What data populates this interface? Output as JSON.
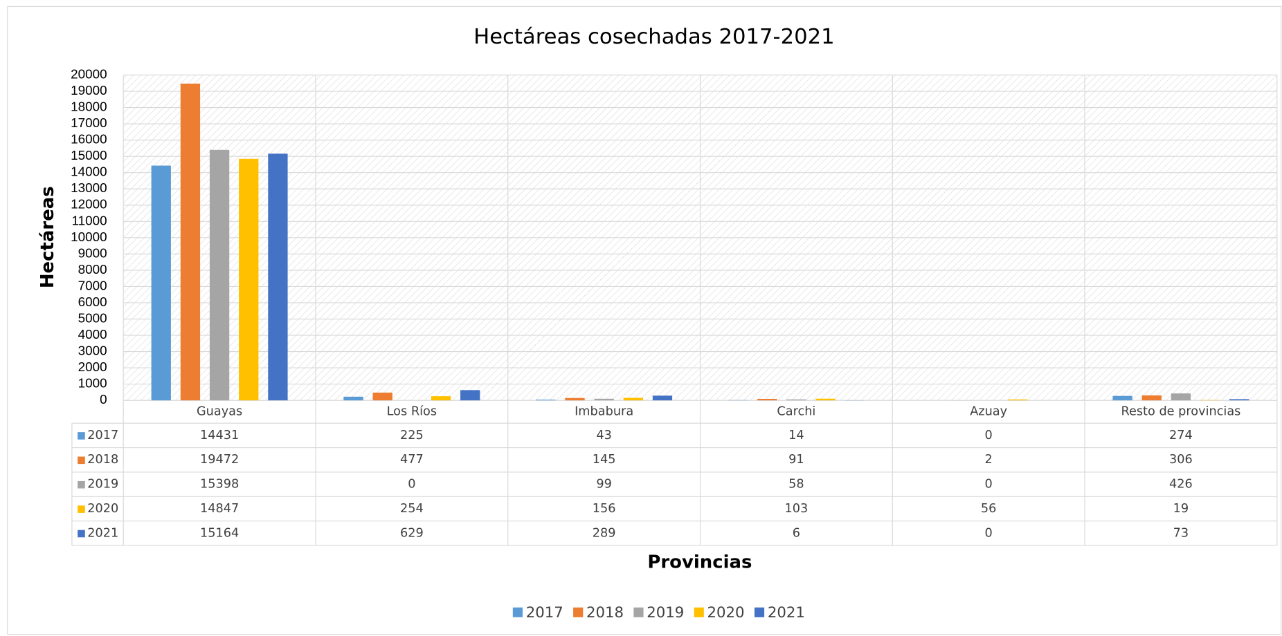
{
  "chart_data": {
    "type": "bar",
    "title": "Hectáreas cosechadas 2017-2021",
    "x_label": "Provincias",
    "y_label": "Hectáreas",
    "categories": [
      "Guayas",
      "Los Ríos",
      "Imbabura",
      "Carchi",
      "Azuay",
      "Resto de provincias"
    ],
    "series": [
      {
        "name": "2017",
        "color": "#5b9bd5",
        "values": [
          14431,
          225,
          43,
          14,
          0,
          274
        ]
      },
      {
        "name": "2018",
        "color": "#ed7d31",
        "values": [
          19472,
          477,
          145,
          91,
          2,
          306
        ]
      },
      {
        "name": "2019",
        "color": "#a5a5a5",
        "values": [
          15398,
          0,
          99,
          58,
          0,
          426
        ]
      },
      {
        "name": "2020",
        "color": "#ffc000",
        "values": [
          14847,
          254,
          156,
          103,
          56,
          19
        ]
      },
      {
        "name": "2021",
        "color": "#4472c4",
        "values": [
          15164,
          629,
          289,
          6,
          0,
          73
        ]
      }
    ],
    "ylim": [
      0,
      20000
    ],
    "yticks": [
      0,
      1000,
      2000,
      3000,
      4000,
      5000,
      6000,
      7000,
      8000,
      9000,
      10000,
      11000,
      12000,
      13000,
      14000,
      15000,
      16000,
      17000,
      18000,
      19000,
      20000
    ],
    "grid": true,
    "legend": "bottom"
  }
}
